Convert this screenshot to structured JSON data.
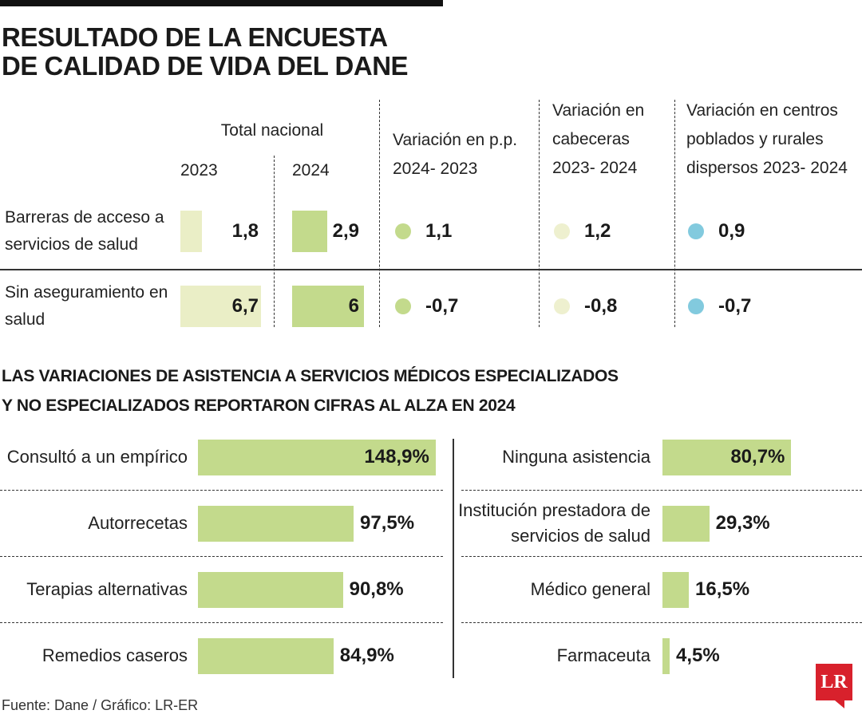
{
  "title": [
    "RESULTADO DE LA ENCUESTA",
    "DE CALIDAD DE VIDA DEL DANE"
  ],
  "table": {
    "group_header": "Total nacional",
    "headers": [
      "2023",
      "2024",
      "Variación en p.p. 2024- 2023",
      "Variación en cabeceras 2023- 2024",
      "Variación en centros poblados y rurales dispersos 2023- 2024"
    ],
    "column_colors": [
      "#eaeec6",
      "#c3da8c",
      "#c3da8c",
      "#eef0cf",
      "#82cade"
    ],
    "rows": [
      {
        "label": "Barreras de acceso a servicios de salud",
        "values": [
          {
            "value": 1.8,
            "label": "1,8"
          },
          {
            "value": 2.9,
            "label": "2,9"
          },
          {
            "value": 1.1,
            "label": "1,1"
          },
          {
            "value": 1.2,
            "label": "1,2"
          },
          {
            "value": 0.9,
            "label": "0,9"
          }
        ]
      },
      {
        "label": "Sin aseguramiento en salud",
        "values": [
          {
            "value": 6.7,
            "label": "6,7"
          },
          6,
          {
            "value": -0.7,
            "label": "-0,7"
          },
          {
            "value": -0.8,
            "label": "-0,8"
          },
          {
            "value": -0.7,
            "label": "-0,7"
          }
        ]
      }
    ]
  },
  "subtitle": [
    "LAS VARIACIONES DE ASISTENCIA A SERVICIOS MÉDICOS ESPECIALIZADOS",
    "Y NO ESPECIALIZADOS REPORTARON CIFRAS AL ALZA EN 2024"
  ],
  "chart_data": [
    {
      "type": "bar",
      "categories": [
        "Consultó a un empírico",
        "Autorrecetas",
        "Terapias alternativas",
        "Remedios caseros"
      ],
      "values": [
        148.9,
        97.5,
        90.8,
        84.9
      ],
      "value_labels": [
        "148,9%",
        "97,5%",
        "90,8%",
        "84,9%"
      ],
      "color": "#c3da8c"
    },
    {
      "type": "bar",
      "categories": [
        "Ninguna asistencia",
        "Institución prestadora de servicios de salud",
        "Médico general",
        "Farmaceuta"
      ],
      "values": [
        80.7,
        29.3,
        16.5,
        4.5
      ],
      "value_labels": [
        "80,7%",
        "29,3%",
        "16,5%",
        "4,5%"
      ],
      "color": "#c3da8c"
    }
  ],
  "source": "Fuente: Dane / Gráfico: LR-ER",
  "logo": "LR"
}
